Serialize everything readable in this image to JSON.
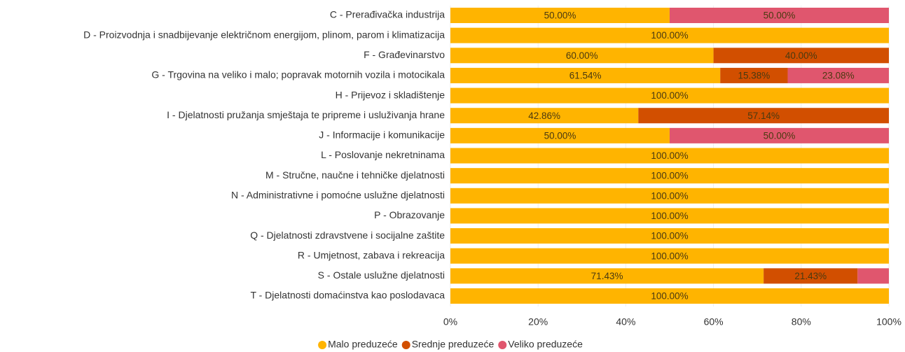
{
  "chart_data": {
    "type": "stacked-bar-horizontal",
    "categories": [
      "C - Prerađivačka industrija",
      "D - Proizvodnja i snadbijevanje električnom energijom, plinom, parom i klimatizacija",
      "F - Građevinarstvo",
      "G - Trgovina na veliko i malo; popravak motornih vozila i motocikala",
      "H - Prijevoz i skladištenje",
      "I - Djelatnosti pružanja smještaja te pripreme i usluživanja hrane",
      "J - Informacije i komunikacije",
      "L - Poslovanje nekretninama",
      "M - Stručne, naučne i tehničke djelatnosti",
      "N - Administrativne i pomoćne uslužne djelatnosti",
      "P - Obrazovanje",
      "Q - Djelatnosti zdravstvene i socijalne zaštite",
      "R - Umjetnost, zabava i rekreacija",
      "S - Ostale uslužne djelatnosti",
      "T - Djelatnosti domaćinstva kao poslodavaca"
    ],
    "series": [
      {
        "name": "Malo preduzeće",
        "color": "#FFB400",
        "values": [
          50,
          100,
          60,
          61.54,
          100,
          42.86,
          50,
          100,
          100,
          100,
          100,
          100,
          100,
          71.43,
          100
        ],
        "value_labels": [
          "50.00%",
          "100.00%",
          "60.00%",
          "61.54%",
          "100.00%",
          "42.86%",
          "50.00%",
          "100.00%",
          "100.00%",
          "100.00%",
          "100.00%",
          "100.00%",
          "100.00%",
          "71.43%",
          "100.00%"
        ]
      },
      {
        "name": "Srednje preduzeće",
        "color": "#D24F00",
        "values": [
          0,
          0,
          40,
          15.38,
          0,
          57.14,
          0,
          0,
          0,
          0,
          0,
          0,
          0,
          21.43,
          0
        ],
        "value_labels": [
          null,
          null,
          "40.00%",
          "15.38%",
          null,
          "57.14%",
          null,
          null,
          null,
          null,
          null,
          null,
          null,
          "21.43%",
          null
        ]
      },
      {
        "name": "Veliko preduzeće",
        "color": "#E0566E",
        "values": [
          50,
          0,
          0,
          23.08,
          0,
          0,
          50,
          0,
          0,
          0,
          0,
          0,
          0,
          7.14,
          0
        ],
        "value_labels": [
          "50.00%",
          null,
          null,
          "23.08%",
          null,
          null,
          "50.00%",
          null,
          null,
          null,
          null,
          null,
          null,
          null,
          null
        ]
      }
    ],
    "xlim": [
      0,
      100
    ],
    "xticks": [
      {
        "value": 0,
        "label": "0%"
      },
      {
        "value": 20,
        "label": "20%"
      },
      {
        "value": 40,
        "label": "40%"
      },
      {
        "value": 60,
        "label": "60%"
      },
      {
        "value": 80,
        "label": "80%"
      },
      {
        "value": 100,
        "label": "100%"
      }
    ],
    "grid": true
  }
}
